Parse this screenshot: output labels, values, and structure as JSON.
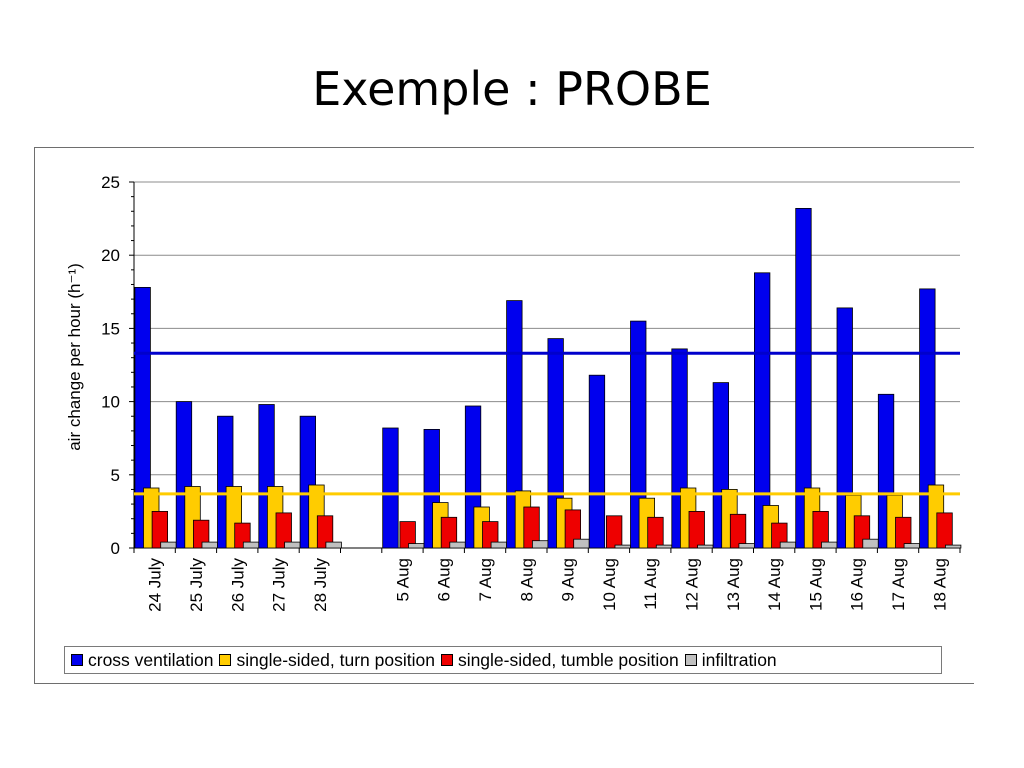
{
  "slide": {
    "title": "Exemple : PROBE"
  },
  "chart_data": {
    "type": "bar",
    "title": "",
    "xlabel": "",
    "ylabel": "air change per hour (h⁻¹)",
    "ylim": [
      0,
      25
    ],
    "yticks": [
      0,
      5,
      10,
      15,
      20,
      25
    ],
    "grid": true,
    "legend_position": "bottom",
    "categories": [
      "24 July",
      "25 July",
      "26 July",
      "27 July",
      "28 July",
      "",
      "5 Aug",
      "6 Aug",
      "7 Aug",
      "8 Aug",
      "9 Aug",
      "10 Aug",
      "11 Aug",
      "12 Aug",
      "13 Aug",
      "14 Aug",
      "15 Aug",
      "16 Aug",
      "17 Aug",
      "18 Aug"
    ],
    "series": [
      {
        "name": "cross ventilation",
        "color": "#0000ee",
        "values": [
          17.8,
          10.0,
          9.0,
          9.8,
          9.0,
          null,
          8.2,
          8.1,
          9.7,
          16.9,
          14.3,
          11.8,
          15.5,
          13.6,
          11.3,
          18.8,
          23.2,
          16.4,
          10.5,
          17.7
        ]
      },
      {
        "name": "single-sided, turn position",
        "color": "#ffcc00",
        "values": [
          4.1,
          4.2,
          4.2,
          4.2,
          4.3,
          null,
          null,
          3.1,
          2.8,
          3.9,
          3.4,
          null,
          3.4,
          4.1,
          4.0,
          2.9,
          4.1,
          3.6,
          3.6,
          4.3
        ]
      },
      {
        "name": "single-sided, tumble position",
        "color": "#ee0000",
        "values": [
          2.5,
          1.9,
          1.7,
          2.4,
          2.2,
          null,
          1.8,
          2.1,
          1.8,
          2.8,
          2.6,
          2.2,
          2.1,
          2.5,
          2.3,
          1.7,
          2.5,
          2.2,
          2.1,
          2.4
        ]
      },
      {
        "name": "infiltration",
        "color": "#c0c0c0",
        "values": [
          0.4,
          0.4,
          0.4,
          0.4,
          0.4,
          null,
          0.3,
          0.4,
          0.4,
          0.5,
          0.6,
          0.2,
          0.2,
          0.2,
          0.3,
          0.4,
          0.4,
          0.6,
          0.3,
          0.2
        ]
      }
    ],
    "reference_lines": [
      {
        "value": 13.3,
        "color": "#0000cc"
      },
      {
        "value": 3.7,
        "color": "#ffcc00"
      }
    ]
  }
}
